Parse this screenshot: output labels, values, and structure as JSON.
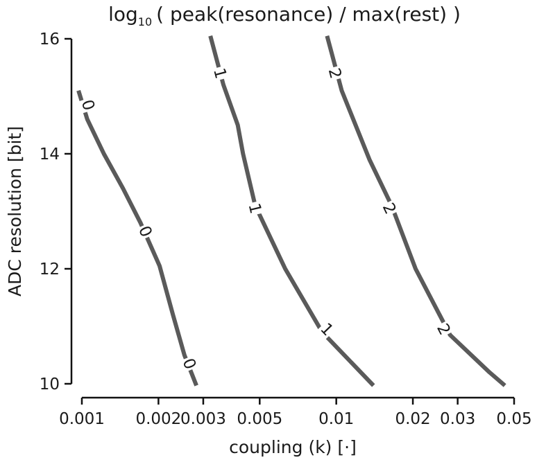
{
  "chart_data": {
    "type": "line",
    "title": {
      "prefix": "log",
      "subscript": "10",
      "rest": "( peak(resonance) / max(rest) )"
    },
    "xlabel": "coupling (k) [·]",
    "ylabel": "ADC resolution [bit]",
    "x_scale": "log",
    "xlim": [
      0.001,
      0.05
    ],
    "ylim": [
      10,
      16
    ],
    "x_ticks": [
      {
        "value": 0.001,
        "label": "0.001"
      },
      {
        "value": 0.002,
        "label": "0.002"
      },
      {
        "value": 0.003,
        "label": "0.003"
      },
      {
        "value": 0.005,
        "label": "0.005"
      },
      {
        "value": 0.01,
        "label": "0.01"
      },
      {
        "value": 0.02,
        "label": "0.02"
      },
      {
        "value": 0.03,
        "label": "0.03"
      },
      {
        "value": 0.05,
        "label": "0.05"
      }
    ],
    "y_ticks": [
      {
        "value": 10,
        "label": "10"
      },
      {
        "value": 12,
        "label": "12"
      },
      {
        "value": 14,
        "label": "14"
      },
      {
        "value": 16,
        "label": "16"
      }
    ],
    "line_color": "#5a5a5a",
    "series": [
      {
        "level": "0",
        "points": [
          [
            0.00097,
            15.1
          ],
          [
            0.00105,
            14.6
          ],
          [
            0.00122,
            14.0
          ],
          [
            0.00145,
            13.4
          ],
          [
            0.0017,
            12.8
          ],
          [
            0.00202,
            12.05
          ],
          [
            0.00228,
            11.2
          ],
          [
            0.00253,
            10.5
          ],
          [
            0.00282,
            9.97
          ]
        ],
        "labels": [
          [
            0.00106,
            14.85
          ],
          [
            0.00178,
            12.65
          ],
          [
            0.00265,
            10.35
          ]
        ]
      },
      {
        "level": "1",
        "points": [
          [
            0.0032,
            16.05
          ],
          [
            0.0036,
            15.2
          ],
          [
            0.0041,
            14.5
          ],
          [
            0.0043,
            14.0
          ],
          [
            0.0048,
            13.1
          ],
          [
            0.0063,
            12.0
          ],
          [
            0.0088,
            10.9
          ],
          [
            0.014,
            9.97
          ]
        ],
        "labels": [
          [
            0.0035,
            15.4
          ],
          [
            0.0048,
            13.05
          ],
          [
            0.0092,
            10.95
          ]
        ]
      },
      {
        "level": "2",
        "points": [
          [
            0.0092,
            16.05
          ],
          [
            0.0105,
            15.1
          ],
          [
            0.0135,
            13.9
          ],
          [
            0.0165,
            13.1
          ],
          [
            0.0205,
            12.0
          ],
          [
            0.028,
            10.85
          ],
          [
            0.04,
            10.2
          ],
          [
            0.046,
            9.97
          ]
        ],
        "labels": [
          [
            0.0099,
            15.4
          ],
          [
            0.0162,
            13.05
          ],
          [
            0.0265,
            10.95
          ]
        ]
      }
    ],
    "grid": false,
    "legend": "none"
  }
}
